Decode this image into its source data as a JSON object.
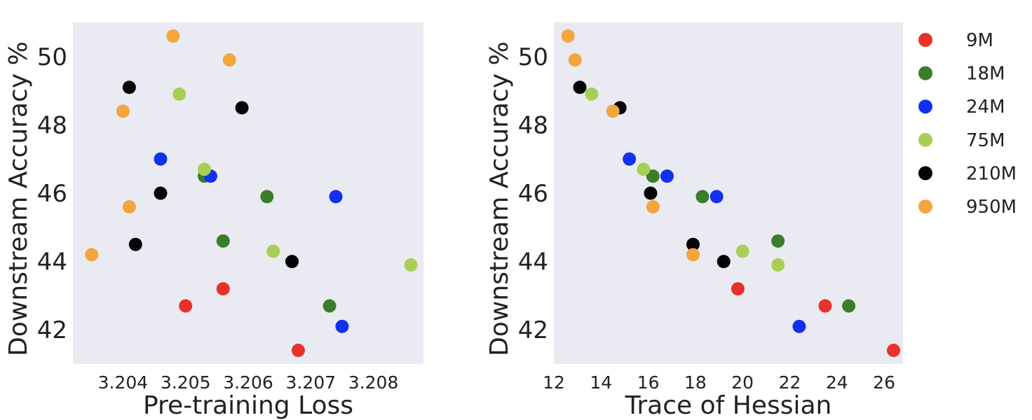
{
  "legend": {
    "placement": "right",
    "entries": [
      {
        "name": "9M",
        "color": "#e8312a"
      },
      {
        "name": "18M",
        "color": "#3a7d2a"
      },
      {
        "name": "24M",
        "color": "#1230f0"
      },
      {
        "name": "75M",
        "color": "#a8cf55"
      },
      {
        "name": "210M",
        "color": "#050505"
      },
      {
        "name": "950M",
        "color": "#f2a63c"
      }
    ]
  },
  "chart_data": [
    {
      "type": "scatter",
      "xlabel": "Pre-training Loss",
      "ylabel": "Downstream Accuracy %",
      "xlim": [
        3.2032,
        3.2088
      ],
      "ylim": [
        41.0,
        51.0
      ],
      "xticks": [
        "3.204",
        "3.205",
        "3.206",
        "3.207",
        "3.208"
      ],
      "xtick_values": [
        3.204,
        3.205,
        3.206,
        3.207,
        3.208
      ],
      "yticks": [
        "42",
        "44",
        "46",
        "48",
        "50"
      ],
      "ytick_values": [
        42,
        44,
        46,
        48,
        50
      ],
      "background": "#eaeaf2",
      "grid": false,
      "series": [
        {
          "name": "9M",
          "points": [
            [
              3.205,
              42.7
            ],
            [
              3.2056,
              43.2
            ],
            [
              3.2068,
              41.4
            ]
          ]
        },
        {
          "name": "18M",
          "points": [
            [
              3.2053,
              46.5
            ],
            [
              3.2056,
              44.6
            ],
            [
              3.2063,
              45.9
            ],
            [
              3.2073,
              42.7
            ]
          ]
        },
        {
          "name": "24M",
          "points": [
            [
              3.2046,
              47.0
            ],
            [
              3.2054,
              46.5
            ],
            [
              3.2074,
              45.9
            ],
            [
              3.2075,
              42.1
            ]
          ]
        },
        {
          "name": "75M",
          "points": [
            [
              3.2049,
              48.9
            ],
            [
              3.2053,
              46.7
            ],
            [
              3.2064,
              44.3
            ],
            [
              3.2086,
              43.9
            ]
          ]
        },
        {
          "name": "210M",
          "points": [
            [
              3.2041,
              49.1
            ],
            [
              3.2046,
              46.0
            ],
            [
              3.2042,
              44.5
            ],
            [
              3.2059,
              48.5
            ],
            [
              3.2067,
              44.0
            ]
          ]
        },
        {
          "name": "950M",
          "points": [
            [
              3.2035,
              44.2
            ],
            [
              3.204,
              48.4
            ],
            [
              3.2041,
              45.6
            ],
            [
              3.2048,
              50.6
            ],
            [
              3.2057,
              49.9
            ]
          ]
        }
      ]
    },
    {
      "type": "scatter",
      "xlabel": "Trace of Hessian",
      "ylabel": "Downstream Accuracy %",
      "xlim": [
        12.0,
        26.8
      ],
      "ylim": [
        41.0,
        51.0
      ],
      "xticks": [
        "12",
        "14",
        "16",
        "18",
        "20",
        "22",
        "24",
        "26"
      ],
      "xtick_values": [
        12,
        14,
        16,
        18,
        20,
        22,
        24,
        26
      ],
      "yticks": [
        "42",
        "44",
        "46",
        "48",
        "50"
      ],
      "ytick_values": [
        42,
        44,
        46,
        48,
        50
      ],
      "background": "#eaeaf2",
      "grid": false,
      "series": [
        {
          "name": "9M",
          "points": [
            [
              19.8,
              43.2
            ],
            [
              23.5,
              42.7
            ],
            [
              26.4,
              41.4
            ]
          ]
        },
        {
          "name": "18M",
          "points": [
            [
              16.2,
              46.5
            ],
            [
              18.3,
              45.9
            ],
            [
              21.5,
              44.6
            ],
            [
              24.5,
              42.7
            ]
          ]
        },
        {
          "name": "24M",
          "points": [
            [
              15.2,
              47.0
            ],
            [
              16.8,
              46.5
            ],
            [
              18.9,
              45.9
            ],
            [
              22.4,
              42.1
            ]
          ]
        },
        {
          "name": "75M",
          "points": [
            [
              13.6,
              48.9
            ],
            [
              15.8,
              46.7
            ],
            [
              20.0,
              44.3
            ],
            [
              21.5,
              43.9
            ]
          ]
        },
        {
          "name": "210M",
          "points": [
            [
              13.1,
              49.1
            ],
            [
              14.8,
              48.5
            ],
            [
              16.1,
              46.0
            ],
            [
              17.9,
              44.5
            ],
            [
              19.2,
              44.0
            ]
          ]
        },
        {
          "name": "950M",
          "points": [
            [
              12.6,
              50.6
            ],
            [
              12.9,
              49.9
            ],
            [
              14.5,
              48.4
            ],
            [
              16.2,
              45.6
            ],
            [
              17.9,
              44.2
            ]
          ]
        }
      ]
    }
  ]
}
